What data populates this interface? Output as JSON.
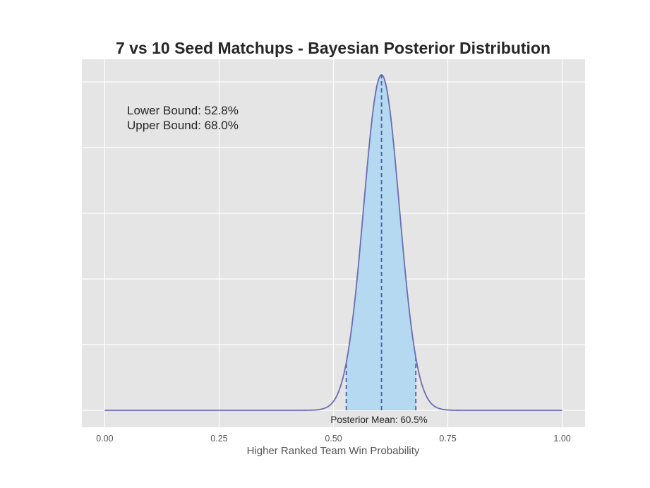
{
  "chart_data": {
    "type": "area",
    "title": "7 vs 10 Seed Matchups - Bayesian Posterior Distribution",
    "xlabel": "Higher Ranked Team Win Probability",
    "ylabel": "",
    "xlim": [
      -0.05,
      1.05
    ],
    "x_ticks": [
      0.0,
      0.25,
      0.5,
      0.75,
      1.0
    ],
    "x_tick_labels": [
      "0.00",
      "0.25",
      "0.50",
      "0.75",
      "1.00"
    ],
    "y_ticks_shown": false,
    "grid": true,
    "distribution": {
      "mean": 0.605,
      "std": 0.039,
      "x_range": [
        0.0,
        1.0
      ],
      "credible_interval": [
        0.528,
        0.68
      ]
    },
    "annotations": {
      "lower_bound": "Lower Bound:  52.8%",
      "upper_bound": "Upper Bound:  68.0%",
      "posterior_mean": "Posterior Mean:  60.5%"
    },
    "colors": {
      "curve": "#6b6bb5",
      "fill": "#b5d9f0",
      "dashed": "#4b5bb0",
      "plot_bg": "#e5e5e5",
      "grid": "#ffffff"
    }
  }
}
